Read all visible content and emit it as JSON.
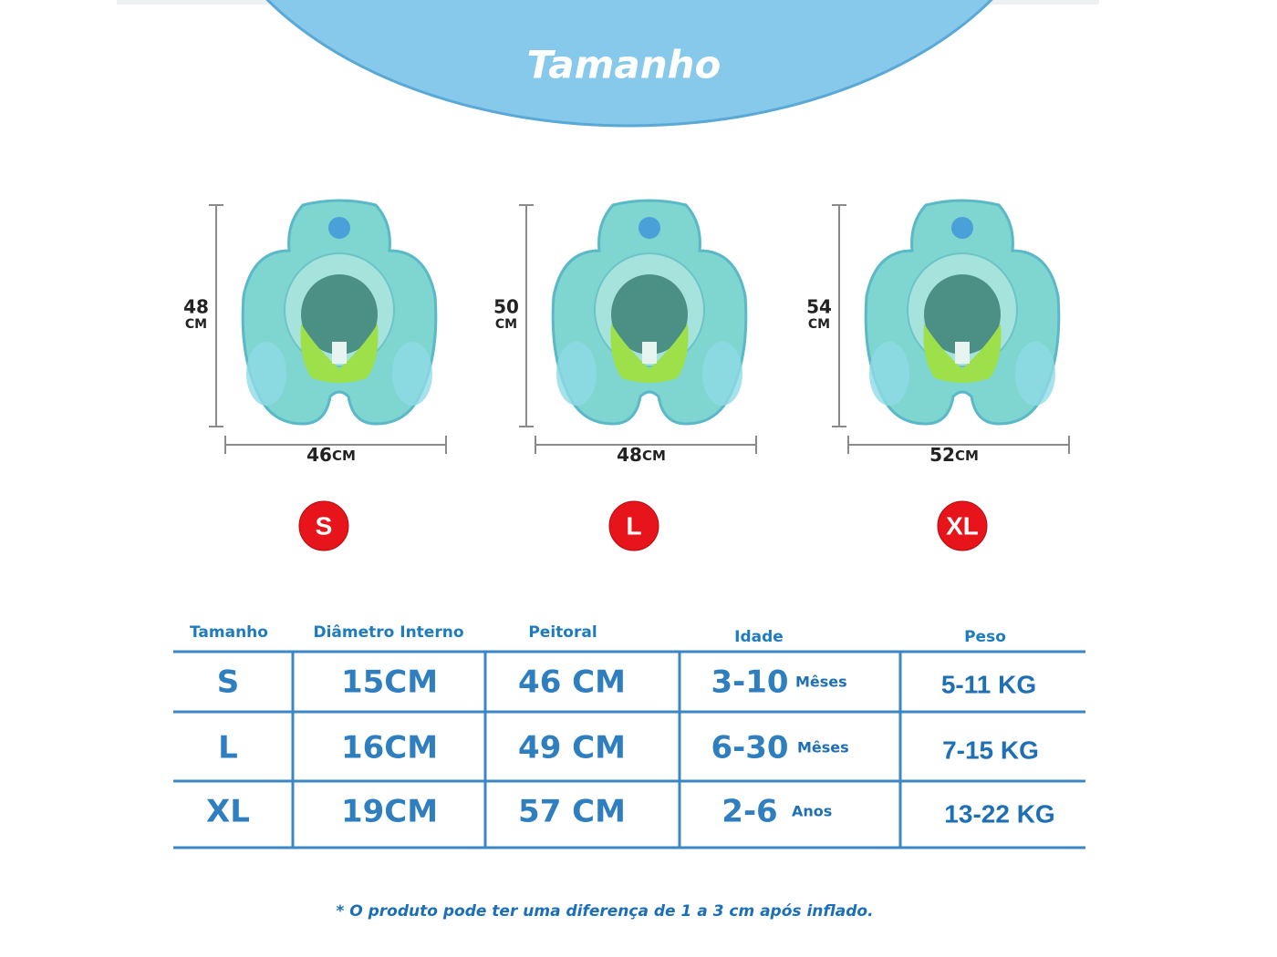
{
  "header": {
    "title": "Tamanho"
  },
  "products": [
    {
      "height": "48",
      "height_unit": "CM",
      "width": "46",
      "width_unit": "CM",
      "size": "S"
    },
    {
      "height": "50",
      "height_unit": "CM",
      "width": "48",
      "width_unit": "CM",
      "size": "L"
    },
    {
      "height": "54",
      "height_unit": "CM",
      "width": "52",
      "width_unit": "CM",
      "size": "XL"
    }
  ],
  "table": {
    "columns": [
      "Tamanho",
      "Diâmetro Interno",
      "Peitoral",
      "Idade",
      "Peso"
    ],
    "rows": [
      {
        "size": "S",
        "inner_diameter": "15CM",
        "chest": "46 CM",
        "age": "3-10",
        "age_unit": "Mêses",
        "weight": "5-11 KG"
      },
      {
        "size": "L",
        "inner_diameter": "16CM",
        "chest": "49 CM",
        "age": "6-30",
        "age_unit": "Mêses",
        "weight": "7-15 KG"
      },
      {
        "size": "XL",
        "inner_diameter": "19CM",
        "chest": "57 CM",
        "age": "2-6",
        "age_unit": "Anos",
        "weight": "13-22 KG"
      }
    ]
  },
  "note": "* O produto pode ter uma diferença de 1 a 3 cm após inflado."
}
